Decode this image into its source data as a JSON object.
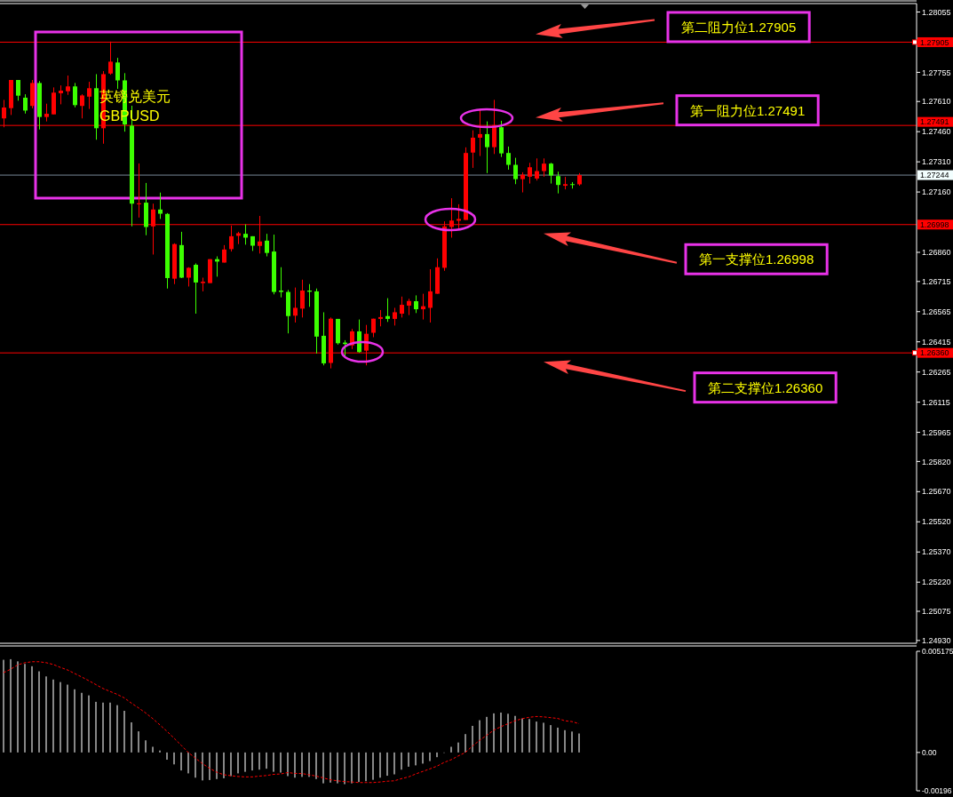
{
  "chart_data": [
    {
      "type": "candlestick",
      "title": "英镑兑美元",
      "subtitle": "GBPUSD",
      "categories": [
        null,
        null,
        null,
        null,
        null,
        null,
        null,
        null,
        null,
        null,
        null,
        null,
        null,
        null,
        null,
        null,
        null,
        null,
        null,
        null,
        null,
        null,
        null,
        null,
        null,
        null,
        null,
        null,
        null,
        null,
        null,
        null,
        null,
        null,
        null,
        null,
        null,
        null,
        null,
        null,
        null,
        null,
        null,
        null,
        null,
        null,
        null,
        null,
        null,
        null,
        null,
        null,
        null,
        null,
        null,
        null,
        null,
        null,
        null,
        null,
        null,
        null,
        null,
        null,
        null,
        null,
        null,
        null,
        null,
        null,
        null,
        null,
        null,
        null,
        null,
        null,
        null,
        null,
        null,
        null,
        null,
        null,
        null,
        null,
        null,
        null,
        null,
        null,
        null,
        null,
        null,
        null,
        null,
        null,
        null,
        null,
        null,
        null,
        null,
        null,
        null,
        null,
        null,
        null,
        null,
        null,
        null,
        null,
        null,
        null,
        null,
        null,
        null,
        null,
        null,
        null,
        null,
        null,
        null,
        null,
        null,
        null,
        null,
        null,
        null,
        null,
        null,
        null,
        null
      ],
      "ohlc": [
        [
          1.27526,
          1.27618,
          1.27482,
          1.2758
        ],
        [
          1.27577,
          1.27717,
          1.27543,
          1.27717
        ],
        [
          1.27717,
          1.27717,
          1.27614,
          1.27639
        ],
        [
          1.27629,
          1.27646,
          1.2755,
          1.27565
        ],
        [
          1.27588,
          1.27717,
          1.27576,
          1.27702
        ],
        [
          1.27702,
          1.27712,
          1.27471,
          1.27533
        ],
        [
          1.27533,
          1.27599,
          1.27511,
          1.27549
        ],
        [
          1.27546,
          1.2768,
          1.27546,
          1.27654
        ],
        [
          1.27651,
          1.2769,
          1.27596,
          1.27664
        ],
        [
          1.27661,
          1.27739,
          1.27643,
          1.27685
        ],
        [
          1.27685,
          1.27702,
          1.27581,
          1.27592
        ],
        [
          1.27588,
          1.27646,
          1.27526,
          1.2764
        ],
        [
          1.27634,
          1.27708,
          1.27573,
          1.27676
        ],
        [
          1.27676,
          1.27746,
          1.2742,
          1.27477
        ],
        [
          1.27477,
          1.27761,
          1.274,
          1.27746
        ],
        [
          1.27749,
          1.27908,
          1.27743,
          1.27808
        ],
        [
          1.27804,
          1.27827,
          1.27673,
          1.27715
        ],
        [
          1.27715,
          1.27751,
          1.2746,
          1.27496
        ],
        [
          1.2749,
          1.27589,
          1.26989,
          1.27102
        ],
        [
          1.27099,
          1.27302,
          1.27033,
          1.27104
        ],
        [
          1.27107,
          1.27205,
          1.26945,
          1.26986
        ],
        [
          1.26989,
          1.27102,
          1.26849,
          1.27073
        ],
        [
          1.27073,
          1.27157,
          1.27026,
          1.27052
        ],
        [
          1.27051,
          1.27055,
          1.2668,
          1.26732
        ],
        [
          1.26729,
          1.26905,
          1.26702,
          1.26901
        ],
        [
          1.26896,
          1.26962,
          1.26732,
          1.26734
        ],
        [
          1.26734,
          1.26786,
          1.2669,
          1.26783
        ],
        [
          1.26798,
          1.26805,
          1.26555,
          1.2671
        ],
        [
          1.26707,
          1.26734,
          1.26666,
          1.26714
        ],
        [
          1.26707,
          1.26826,
          1.26707,
          1.26826
        ],
        [
          1.26826,
          1.2684,
          1.26739,
          1.26814
        ],
        [
          1.26809,
          1.26896,
          1.26809,
          1.26874
        ],
        [
          1.26876,
          1.26993,
          1.26864,
          1.2694
        ],
        [
          1.26942,
          1.26962,
          1.26901,
          1.26955
        ],
        [
          1.26952,
          1.26999,
          1.26898,
          1.26933
        ],
        [
          1.2694,
          1.2694,
          1.26867,
          1.26893
        ],
        [
          1.26892,
          1.27041,
          1.26854,
          1.26914
        ],
        [
          1.26918,
          1.26952,
          1.2684,
          1.26857
        ],
        [
          1.26864,
          1.26948,
          1.26651,
          1.26663
        ],
        [
          1.2667,
          1.26786,
          1.26636,
          1.26663
        ],
        [
          1.26663,
          1.26673,
          1.26457,
          1.26543
        ],
        [
          1.26545,
          1.26685,
          1.26511,
          1.26584
        ],
        [
          1.2658,
          1.26724,
          1.26536,
          1.2667
        ],
        [
          1.2667,
          1.26702,
          1.26589,
          1.26664
        ],
        [
          1.26666,
          1.2668,
          1.26357,
          1.26441
        ],
        [
          1.26445,
          1.26562,
          1.26298,
          1.26308
        ],
        [
          1.2631,
          1.26536,
          1.26283,
          1.2653
        ],
        [
          1.26529,
          1.26529,
          1.26401,
          1.26408
        ],
        [
          1.26411,
          1.26423,
          1.26342,
          1.26404
        ],
        [
          1.26397,
          1.26479,
          1.26379,
          1.26467
        ],
        [
          1.26467,
          1.26526,
          1.26361,
          1.26364
        ],
        [
          1.26371,
          1.26499,
          1.26298,
          1.26455
        ],
        [
          1.2646,
          1.2653,
          1.26438,
          1.2653
        ],
        [
          1.26529,
          1.26573,
          1.26492,
          1.26538
        ],
        [
          1.26543,
          1.26632,
          1.26514,
          1.26529
        ],
        [
          1.26529,
          1.26584,
          1.26496,
          1.26562
        ],
        [
          1.26555,
          1.2664,
          1.26536,
          1.26599
        ],
        [
          1.26595,
          1.26629,
          1.26548,
          1.26618
        ],
        [
          1.26617,
          1.26646,
          1.26558,
          1.26577
        ],
        [
          1.26577,
          1.26654,
          1.26526,
          1.26592
        ],
        [
          1.26584,
          1.26776,
          1.26511,
          1.26666
        ],
        [
          1.26654,
          1.2683,
          1.26654,
          1.26786
        ],
        [
          1.26783,
          1.27014,
          1.26768,
          1.26989
        ],
        [
          1.26986,
          1.27129,
          1.26933,
          1.27018
        ],
        [
          1.27017,
          1.27099,
          1.26974,
          1.27026
        ],
        [
          1.27021,
          1.27382,
          1.27021,
          1.27354
        ],
        [
          1.27356,
          1.27467,
          1.2728,
          1.2743
        ],
        [
          1.2743,
          1.27574,
          1.27339,
          1.27448
        ],
        [
          1.27448,
          1.27511,
          1.27254,
          1.27383
        ],
        [
          1.27383,
          1.27618,
          1.27349,
          1.27493
        ],
        [
          1.27482,
          1.27514,
          1.27334,
          1.27352
        ],
        [
          1.27354,
          1.27386,
          1.27271,
          1.27295
        ],
        [
          1.27295,
          1.2733,
          1.27199,
          1.27224
        ],
        [
          1.27224,
          1.27258,
          1.27158,
          1.27246
        ],
        [
          1.27236,
          1.27305,
          1.27202,
          1.27283
        ],
        [
          1.27227,
          1.27327,
          1.27217,
          1.27264
        ],
        [
          1.27264,
          1.27327,
          1.27236,
          1.27301
        ],
        [
          1.27301,
          1.27305,
          1.27202,
          1.27242
        ],
        [
          1.27239,
          1.27261,
          1.27153,
          1.27195
        ],
        [
          1.27191,
          1.27235,
          1.27173,
          1.27199
        ],
        [
          1.27199,
          1.27209,
          1.27177,
          1.27196
        ],
        [
          1.27198,
          1.27254,
          1.27191,
          1.27244
        ],
        null,
        null,
        null,
        null,
        null,
        null,
        null,
        null,
        null,
        null,
        null,
        null,
        null,
        null,
        null,
        null,
        null,
        null,
        null,
        null,
        null,
        null,
        null,
        null,
        null,
        null,
        null,
        null,
        null,
        null,
        null,
        null,
        null,
        null,
        null,
        null,
        null,
        null,
        null,
        null,
        null,
        null,
        null,
        null,
        null,
        null,
        null
      ],
      "colors": [
        "#ff0000",
        "#ff0000",
        "#3cff00",
        "#3cff00",
        "#ff0000",
        "#3cff00",
        "#ff0000",
        "#ff0000",
        "#ff0000",
        "#ff0000",
        "#3cff00",
        "#ff0000",
        "#ff0000",
        "#3cff00",
        "#ff0000",
        "#ff0000",
        "#3cff00",
        "#3cff00",
        "#3cff00",
        "#ff0000",
        "#3cff00",
        "#ff0000",
        "#3cff00",
        "#3cff00",
        "#ff0000",
        "#3cff00",
        "#ff0000",
        "#3cff00",
        "#ff0000",
        "#ff0000",
        "#3cff00",
        "#ff0000",
        "#ff0000",
        "#ff0000",
        "#3cff00",
        "#3cff00",
        "#ff0000",
        "#3cff00",
        "#3cff00",
        "#3cff00",
        "#3cff00",
        "#ff0000",
        "#ff0000",
        "#3cff00",
        "#3cff00",
        "#3cff00",
        "#ff0000",
        "#3cff00",
        "#3cff00",
        "#ff0000",
        "#3cff00",
        "#ff0000",
        "#ff0000",
        "#ff0000",
        "#3cff00",
        "#ff0000",
        "#ff0000",
        "#ff0000",
        "#3cff00",
        "#ff0000",
        "#ff0000",
        "#ff0000",
        "#ff0000",
        "#ff0000",
        "#ff0000",
        "#ff0000",
        "#ff0000",
        "#ff0000",
        "#3cff00",
        "#ff0000",
        "#3cff00",
        "#3cff00",
        "#3cff00",
        "#ff0000",
        "#ff0000",
        "#ff0000",
        "#ff0000",
        "#3cff00",
        "#3cff00",
        "#ff0000",
        "#3cff00",
        "#ff0000",
        null,
        null,
        null,
        null,
        null,
        null,
        null,
        null,
        null,
        null,
        null,
        null,
        null,
        null,
        null,
        null,
        null,
        null,
        null,
        null,
        null,
        null,
        null,
        null,
        null,
        null,
        null,
        null,
        null,
        null,
        null,
        null,
        null,
        null,
        null,
        null,
        null,
        null,
        null,
        null,
        null,
        null,
        null,
        null,
        null,
        null,
        null
      ],
      "ylim": [
        1.24916,
        1.28097
      ],
      "yticks": [
        1.28055,
        1.27755,
        {
          "value": 1.2761,
          "label": "1.27610"
        },
        {
          "value": 1.2746,
          "label": "1.27460"
        },
        {
          "value": 1.2731,
          "label": "1.27310"
        },
        {
          "value": 1.2716,
          "label": "1.27160"
        },
        {
          "value": 1.2686,
          "label": "1.26860"
        },
        1.26715,
        1.26565,
        1.26415,
        1.26265,
        1.26115,
        1.25965,
        {
          "value": 1.2582,
          "label": "1.25820"
        },
        {
          "value": 1.2567,
          "label": "1.25670"
        },
        {
          "value": 1.2552,
          "label": "1.25520"
        },
        {
          "value": 1.2537,
          "label": "1.25370"
        },
        {
          "value": 1.2522,
          "label": "1.25220"
        },
        1.25075,
        {
          "value": 1.2493,
          "label": "1.24930"
        }
      ],
      "ref_lines": [
        {
          "axis": "y",
          "value": 1.27905,
          "label": "1.27905",
          "color": "#ff0000"
        },
        {
          "axis": "y",
          "value": 1.27491,
          "label": "1.27491",
          "color": "#ff0000"
        },
        {
          "axis": "y",
          "value": 1.26998,
          "label": "1.26998",
          "color": "#ff0000"
        },
        {
          "axis": "y",
          "value": 1.2636,
          "label": "1.26360",
          "color": "#ff0000"
        },
        {
          "axis": "y",
          "value": 1.27244,
          "label": "1.27244",
          "color": "#778899"
        }
      ],
      "annotations": [
        {
          "text": "第二阻力位1.27905",
          "y": 1.27905
        },
        {
          "text": "第一阻力位1.27491",
          "y": 1.27491
        },
        {
          "text": "第一支撑位1.26998",
          "y": 1.26998
        },
        {
          "text": "第二支撑位1.26360",
          "y": 1.2636
        }
      ],
      "tick_labels": "y"
    },
    {
      "type": "bar",
      "categories": [
        null,
        null,
        null,
        null,
        null,
        null,
        null,
        null,
        null,
        null,
        null,
        null,
        null,
        null,
        null,
        null,
        null,
        null,
        null,
        null,
        null,
        null,
        null,
        null,
        null,
        null,
        null,
        null,
        null,
        null,
        null,
        null,
        null,
        null,
        null,
        null,
        null,
        null,
        null,
        null,
        null,
        null,
        null,
        null,
        null,
        null,
        null,
        null,
        null,
        null,
        null,
        null,
        null,
        null,
        null,
        null,
        null,
        null,
        null,
        null,
        null,
        null,
        null,
        null,
        null,
        null,
        null,
        null,
        null,
        null,
        null,
        null,
        null,
        null,
        null,
        null,
        null,
        null,
        null,
        null,
        null,
        null,
        null,
        null,
        null,
        null,
        null,
        null,
        null,
        null,
        null,
        null,
        null,
        null,
        null,
        null,
        null,
        null,
        null,
        null,
        null,
        null,
        null,
        null,
        null,
        null,
        null,
        null,
        null,
        null,
        null,
        null,
        null,
        null,
        null,
        null,
        null,
        null,
        null,
        null,
        null,
        null,
        null,
        null,
        null,
        null,
        null,
        null,
        null
      ],
      "series": [
        {
          "color": "#d0d0d0",
          "values": [
            0.00474,
            0.00477,
            0.00466,
            0.00453,
            0.00441,
            0.00415,
            0.00389,
            0.00373,
            0.0036,
            0.00347,
            0.00323,
            0.00305,
            0.00292,
            0.00259,
            0.00255,
            0.00255,
            0.00242,
            0.00213,
            0.00154,
            0.00108,
            0.00062,
            0.00029,
            0.0001,
            -0.00037,
            -0.00061,
            -0.00092,
            -0.00107,
            -0.00129,
            -0.00143,
            -0.00141,
            -0.00136,
            -0.00132,
            -0.00121,
            -0.00107,
            -0.00099,
            -0.00092,
            -0.00088,
            -0.00083,
            -0.00099,
            -0.00103,
            -0.00121,
            -0.00129,
            -0.00125,
            -0.00125,
            -0.00136,
            -0.00158,
            -0.00154,
            -0.00158,
            -0.00162,
            -0.00158,
            -0.00151,
            -0.00147,
            -0.0014,
            -0.00129,
            -0.00119,
            -0.00112,
            -0.00088,
            -0.00073,
            -0.00066,
            -0.00057,
            -0.00044,
            -0.00024,
            0,
            0.00029,
            0.00051,
            0.00094,
            0.00136,
            0.00165,
            0.00182,
            0.002,
            0.00204,
            0.00198,
            0.00187,
            0.00174,
            0.00171,
            0.00158,
            0.00152,
            0.0014,
            0.00127,
            0.00114,
            0.00107,
            0.00097,
            null,
            null,
            null,
            null,
            null,
            null,
            null,
            null,
            null,
            null,
            null,
            null,
            null,
            null,
            null,
            null,
            null,
            null,
            null,
            null,
            null,
            null,
            null,
            null,
            null,
            null,
            null,
            null,
            null,
            null,
            null,
            null,
            null,
            null,
            null,
            null,
            null,
            null,
            null,
            null,
            null,
            null,
            null,
            null,
            null,
            null,
            null
          ]
        },
        {
          "type": "line",
          "color": "#ff0000",
          "line_style": "dashed",
          "values": [
            0.00408,
            0.00426,
            0.00448,
            0.00459,
            0.00464,
            0.00464,
            0.00459,
            0.0045,
            0.00435,
            0.00422,
            0.00404,
            0.00386,
            0.00367,
            0.00347,
            0.00327,
            0.00312,
            0.00297,
            0.00279,
            0.00252,
            0.00228,
            0.00202,
            0.00173,
            0.00141,
            0.00108,
            0.00073,
            0.00037,
            0,
            -0.00029,
            -0.00057,
            -0.00081,
            -0.00101,
            -0.00114,
            -0.00119,
            -0.00123,
            -0.00125,
            -0.00125,
            -0.00121,
            -0.00118,
            -0.00112,
            -0.0011,
            -0.00103,
            -0.00107,
            -0.00108,
            -0.00114,
            -0.00121,
            -0.0013,
            -0.0014,
            -0.00145,
            -0.00149,
            -0.00151,
            -0.00154,
            -0.00154,
            -0.00154,
            -0.00151,
            -0.00147,
            -0.00145,
            -0.00134,
            -0.00125,
            -0.0011,
            -0.00097,
            -0.00084,
            -0.0007,
            -0.00051,
            -0.00037,
            -0.00018,
            0,
            0.00033,
            0.00062,
            0.00088,
            0.00114,
            0.00132,
            0.00147,
            0.00162,
            0.00173,
            0.0018,
            0.00184,
            0.00182,
            0.00178,
            0.00174,
            0.00162,
            0.00158,
            0.00147,
            null,
            null,
            null,
            null,
            null,
            null,
            null,
            null,
            null,
            null,
            null,
            null,
            null,
            null,
            null,
            null,
            null,
            null,
            null,
            null,
            null,
            null,
            null,
            null,
            null,
            null,
            null,
            null,
            null,
            null,
            null,
            null,
            null,
            null,
            null,
            null,
            null,
            null,
            null,
            null,
            null,
            null,
            null,
            null,
            null,
            null,
            null
          ]
        }
      ],
      "ylim": [
        -0.00196,
        0.005175
      ],
      "yticks": [
        0.005175,
        {
          "value": 0,
          "label": "0.00"
        },
        -0.00196
      ],
      "tick_labels": "y"
    }
  ]
}
